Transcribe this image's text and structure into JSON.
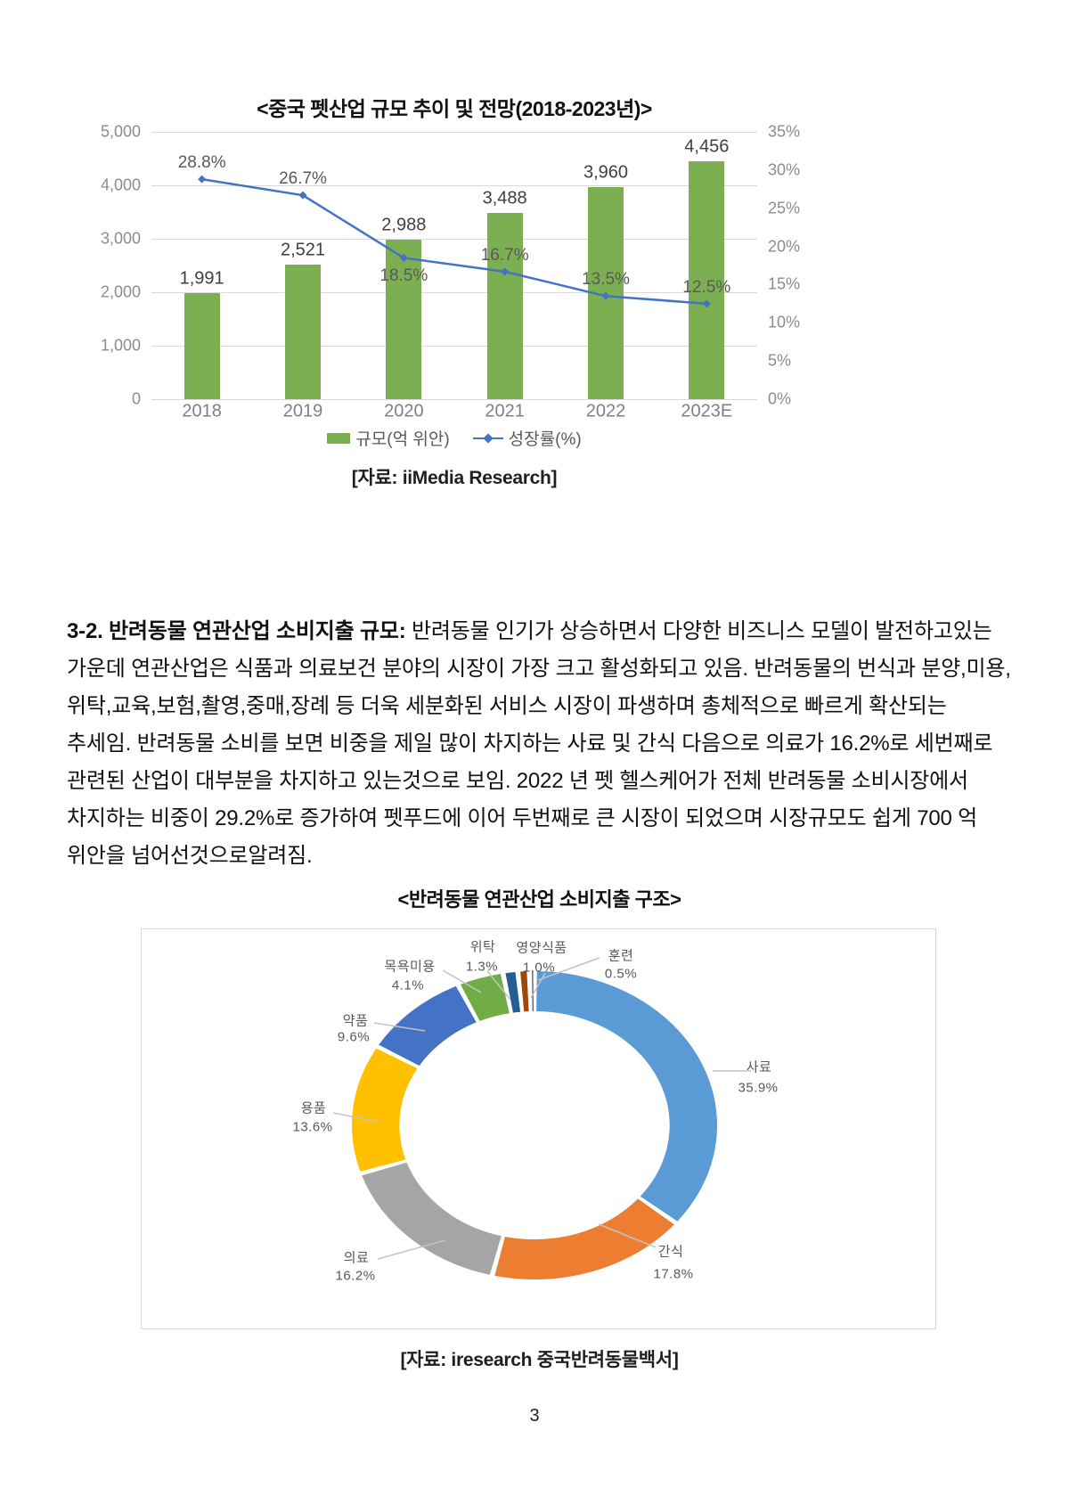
{
  "page": {
    "number": "3"
  },
  "text": {
    "heading_bold": "3-2. 반려동물 연관산업 소비지출 규모:",
    "body": " 반려동물 인기가 상승하면서 다양한 비즈니스 모델이 발전하고있는 가운데 연관산업은 식품과 의료보건 분야의 시장이 가장 크고 활성화되고 있음. 반려동물의 번식과 분양,미용,위탁,교육,보험,촬영,중매,장례 등 더욱 세분화된 서비스 시장이 파생하며 총체적으로 빠르게 확산되는 추세임. 반려동물 소비를 보면 비중을 제일 많이 차지하는 사료 및 간식 다음으로 의료가 16.2%로 세번째로 관련된 산업이 대부분을 차지하고 있는것으로 보임. 2022 년 펫 헬스케어가 전체 반려동물 소비시장에서 차지하는 비중이 29.2%로 증가하여 펫푸드에 이어 두번째로 큰 시장이 되었으며 시장규모도 쉽게 700 억 위안을 넘어선것으로알려짐."
  },
  "chart_data": [
    {
      "type": "bar",
      "subtype": "bar+line-combo",
      "title": "<중국 펫산업 규모 추이 및 전망(2018-2023년)>",
      "source": "[자료: iiMedia Research]",
      "categories": [
        "2018",
        "2019",
        "2020",
        "2021",
        "2022",
        "2023E"
      ],
      "series": [
        {
          "name": "규모(억 위안)",
          "render": "bar",
          "color": "#7CAE52",
          "values": [
            1991,
            2521,
            2988,
            3488,
            3960,
            4456
          ],
          "labels": [
            "1,991",
            "2,521",
            "2,988",
            "3,488",
            "3,960",
            "4,456"
          ]
        },
        {
          "name": "성장률(%)",
          "render": "line",
          "color": "#4472C4",
          "values": [
            28.8,
            26.7,
            18.5,
            16.7,
            13.5,
            12.5
          ],
          "labels": [
            "28.8%",
            "26.7%",
            "18.5%",
            "16.7%",
            "13.5%",
            "12.5%"
          ]
        }
      ],
      "left_axis": {
        "min": 0,
        "max": 5000,
        "ticks": [
          "5,000",
          "4,000",
          "3,000",
          "2,000",
          "1,000",
          "0"
        ]
      },
      "right_axis": {
        "min": 0,
        "max": 35,
        "ticks": [
          "35%",
          "30%",
          "25%",
          "20%",
          "15%",
          "10%",
          "5%",
          "0%"
        ]
      },
      "grid": true,
      "legend_position": "bottom"
    },
    {
      "type": "pie",
      "subtype": "donut",
      "title": "<반려동물 연관산업 소비지출 구조>",
      "source": "[자료: iresearch 중국반려동물백서]",
      "slices": [
        {
          "label": "사료",
          "pct": 35.9,
          "pct_label": "35.9%",
          "color": "#5B9BD5"
        },
        {
          "label": "간식",
          "pct": 17.8,
          "pct_label": "17.8%",
          "color": "#ED7D31"
        },
        {
          "label": "의료",
          "pct": 16.2,
          "pct_label": "16.2%",
          "color": "#A5A5A5"
        },
        {
          "label": "용품",
          "pct": 13.6,
          "pct_label": "13.6%",
          "color": "#FFC000"
        },
        {
          "label": "약품",
          "pct": 9.6,
          "pct_label": "9.6%",
          "color": "#4472C4"
        },
        {
          "label": "목욕미용",
          "pct": 4.1,
          "pct_label": "4.1%",
          "color": "#70AD47"
        },
        {
          "label": "위탁",
          "pct": 1.3,
          "pct_label": "1.3%",
          "color": "#255E91"
        },
        {
          "label": "영양식품",
          "pct": 1.0,
          "pct_label": "1.0%",
          "color": "#9E480E"
        },
        {
          "label": "훈련",
          "pct": 0.5,
          "pct_label": "0.5%",
          "color": "#636363"
        }
      ]
    }
  ]
}
